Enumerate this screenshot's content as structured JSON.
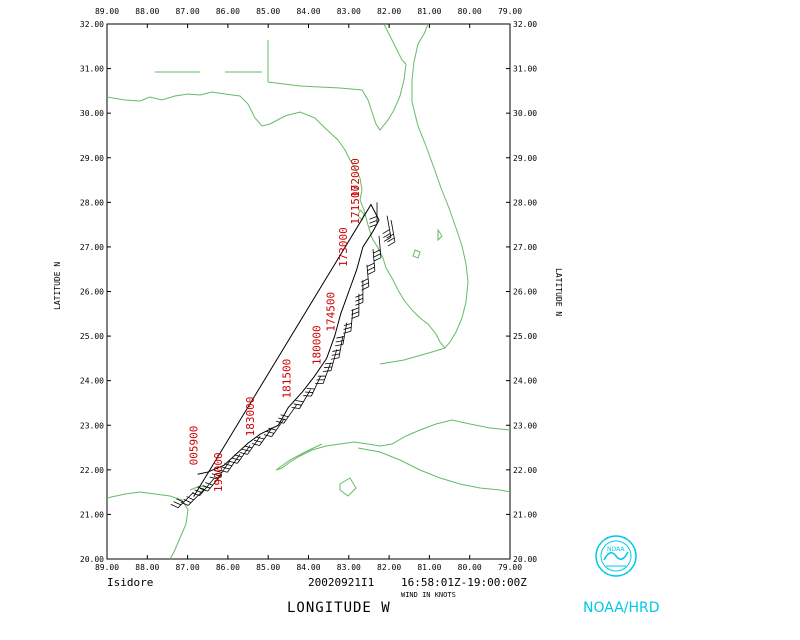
{
  "map": {
    "storm_name": "Isidore",
    "date": "20020921I1",
    "time_range": "16:58:01Z-19:00:00Z",
    "wind_units_note": "WIND IN KNOTS",
    "x_axis_label": "LONGITUDE  W",
    "y_axis_label_left": "LATITUDE  N",
    "y_axis_label_right": "LATITUDE  N",
    "agency": "NOAA/HRD",
    "lon_range": [
      89.0,
      79.0
    ],
    "lat_range": [
      20.0,
      32.0
    ],
    "lon_ticks": [
      "89.00",
      "88.00",
      "87.00",
      "86.00",
      "85.00",
      "84.00",
      "83.00",
      "82.00",
      "81.00",
      "80.00",
      "79.00"
    ],
    "lat_ticks": [
      "32.00",
      "31.00",
      "30.00",
      "29.00",
      "28.00",
      "27.00",
      "26.00",
      "25.00",
      "24.00",
      "23.00",
      "22.00",
      "21.00",
      "20.00"
    ],
    "time_labels": [
      {
        "text": "172000",
        "lon": 82.75,
        "lat": 28.1
      },
      {
        "text": "171500",
        "lon": 82.75,
        "lat": 27.5
      },
      {
        "text": "173000",
        "lon": 83.05,
        "lat": 26.55
      },
      {
        "text": "174500",
        "lon": 83.35,
        "lat": 25.1
      },
      {
        "text": "180000",
        "lon": 83.7,
        "lat": 24.35
      },
      {
        "text": "181500",
        "lon": 84.45,
        "lat": 23.6
      },
      {
        "text": "183000",
        "lon": 85.35,
        "lat": 22.75
      },
      {
        "text": "190000",
        "lon": 86.15,
        "lat": 21.5
      },
      {
        "text": "005900",
        "lon": 86.75,
        "lat": 22.1
      }
    ],
    "track": [
      [
        82.45,
        27.95
      ],
      [
        82.25,
        27.6
      ],
      [
        82.4,
        27.35
      ],
      [
        82.65,
        27.0
      ],
      [
        82.8,
        26.5
      ],
      [
        83.0,
        26.0
      ],
      [
        83.2,
        25.5
      ],
      [
        83.35,
        25.0
      ],
      [
        83.55,
        24.5
      ],
      [
        83.85,
        24.1
      ],
      [
        84.15,
        23.75
      ],
      [
        84.5,
        23.4
      ],
      [
        84.75,
        23.0
      ],
      [
        85.2,
        22.8
      ],
      [
        85.5,
        22.6
      ],
      [
        85.8,
        22.35
      ],
      [
        86.1,
        22.1
      ],
      [
        86.5,
        21.95
      ],
      [
        86.75,
        21.9
      ]
    ],
    "track_start": [
      86.85,
      21.4
    ],
    "barbs": [
      [
        82.3,
        28.0,
        180
      ],
      [
        82.05,
        27.7,
        170
      ],
      [
        81.95,
        27.6,
        170
      ],
      [
        82.25,
        27.25,
        175
      ],
      [
        82.4,
        26.95,
        175
      ],
      [
        82.55,
        26.6,
        175
      ],
      [
        82.65,
        26.25,
        180
      ],
      [
        82.75,
        25.95,
        180
      ],
      [
        82.9,
        25.6,
        185
      ],
      [
        83.05,
        25.3,
        190
      ],
      [
        83.15,
        25.0,
        190
      ],
      [
        83.3,
        24.7,
        195
      ],
      [
        83.45,
        24.4,
        200
      ],
      [
        83.7,
        24.1,
        205
      ],
      [
        83.95,
        23.8,
        210
      ],
      [
        84.3,
        23.45,
        215
      ],
      [
        84.6,
        23.15,
        215
      ],
      [
        84.9,
        22.95,
        215
      ],
      [
        85.2,
        22.75,
        215
      ],
      [
        85.45,
        22.55,
        215
      ],
      [
        85.7,
        22.35,
        215
      ],
      [
        85.95,
        22.2,
        215
      ],
      [
        86.15,
        21.9,
        220
      ],
      [
        86.35,
        21.8,
        220
      ],
      [
        86.6,
        21.55,
        225
      ],
      [
        86.85,
        21.5,
        225
      ]
    ],
    "colors": {
      "coast": "#66bb66",
      "time_label": "#cc0000",
      "logo": "#00c8e8"
    }
  }
}
